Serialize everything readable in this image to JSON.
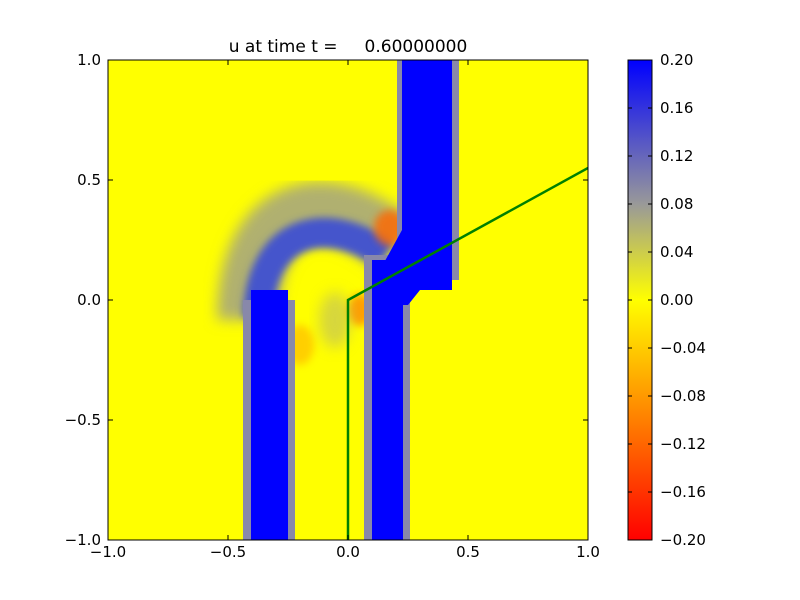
{
  "chart_data": {
    "type": "heatmap",
    "title": "u at time t =     0.60000000",
    "xlabel": "",
    "ylabel": "",
    "xlim": [
      -1.0,
      1.0
    ],
    "ylim": [
      -1.0,
      1.0
    ],
    "x_ticks": [
      "−1.0",
      "−0.5",
      "0.0",
      "0.5",
      "1.0"
    ],
    "y_ticks": [
      "−1.0",
      "−0.5",
      "0.0",
      "0.5",
      "1.0"
    ],
    "x_tick_values": [
      -1.0,
      -0.5,
      0.0,
      0.5,
      1.0
    ],
    "y_tick_values": [
      -1.0,
      -0.5,
      0.0,
      0.5,
      1.0
    ],
    "colorbar": {
      "range": [
        -0.2,
        0.2
      ],
      "tick_values": [
        0.2,
        0.16,
        0.12,
        0.08,
        0.04,
        0.0,
        -0.04,
        -0.08,
        -0.12,
        -0.16,
        -0.2
      ],
      "tick_labels": [
        "0.20",
        "0.16",
        "0.12",
        "0.08",
        "0.04",
        "0.00",
        "−0.04",
        "−0.08",
        "−0.12",
        "−0.16",
        "−0.20"
      ],
      "colors": {
        "min": "#ff0000",
        "zero": "#ffff00",
        "max": "#0000ff"
      }
    },
    "background_value": 0.0,
    "features": [
      {
        "name": "vertical band right top",
        "value": 0.2,
        "x_range": [
          0.225,
          0.425
        ],
        "y_range": [
          0.05,
          1.0
        ]
      },
      {
        "name": "vertical band right bottom",
        "value": 0.2,
        "x_range": [
          0.1,
          0.225
        ],
        "y_range": [
          -1.0,
          0.15
        ]
      },
      {
        "name": "vertical band left",
        "value": 0.2,
        "x_range": [
          -0.4,
          -0.25
        ],
        "y_range": [
          -1.0,
          -0.05
        ]
      },
      {
        "name": "arc",
        "value": 0.15,
        "center": [
          -0.06,
          -0.08
        ],
        "radius": 0.24,
        "angle_range_deg": [
          10,
          180
        ]
      },
      {
        "name": "red blob upper",
        "value": -0.1,
        "center": [
          0.2,
          0.3
        ]
      },
      {
        "name": "red blob middle",
        "value": -0.1,
        "center": [
          0.06,
          -0.03
        ]
      },
      {
        "name": "orange blob left",
        "value": -0.05,
        "center": [
          -0.2,
          -0.2
        ]
      }
    ],
    "overlay_line": {
      "color": "#008000",
      "points": [
        [
          0.0,
          -1.0
        ],
        [
          0.0,
          0.0
        ],
        [
          1.0,
          0.55
        ]
      ]
    }
  }
}
